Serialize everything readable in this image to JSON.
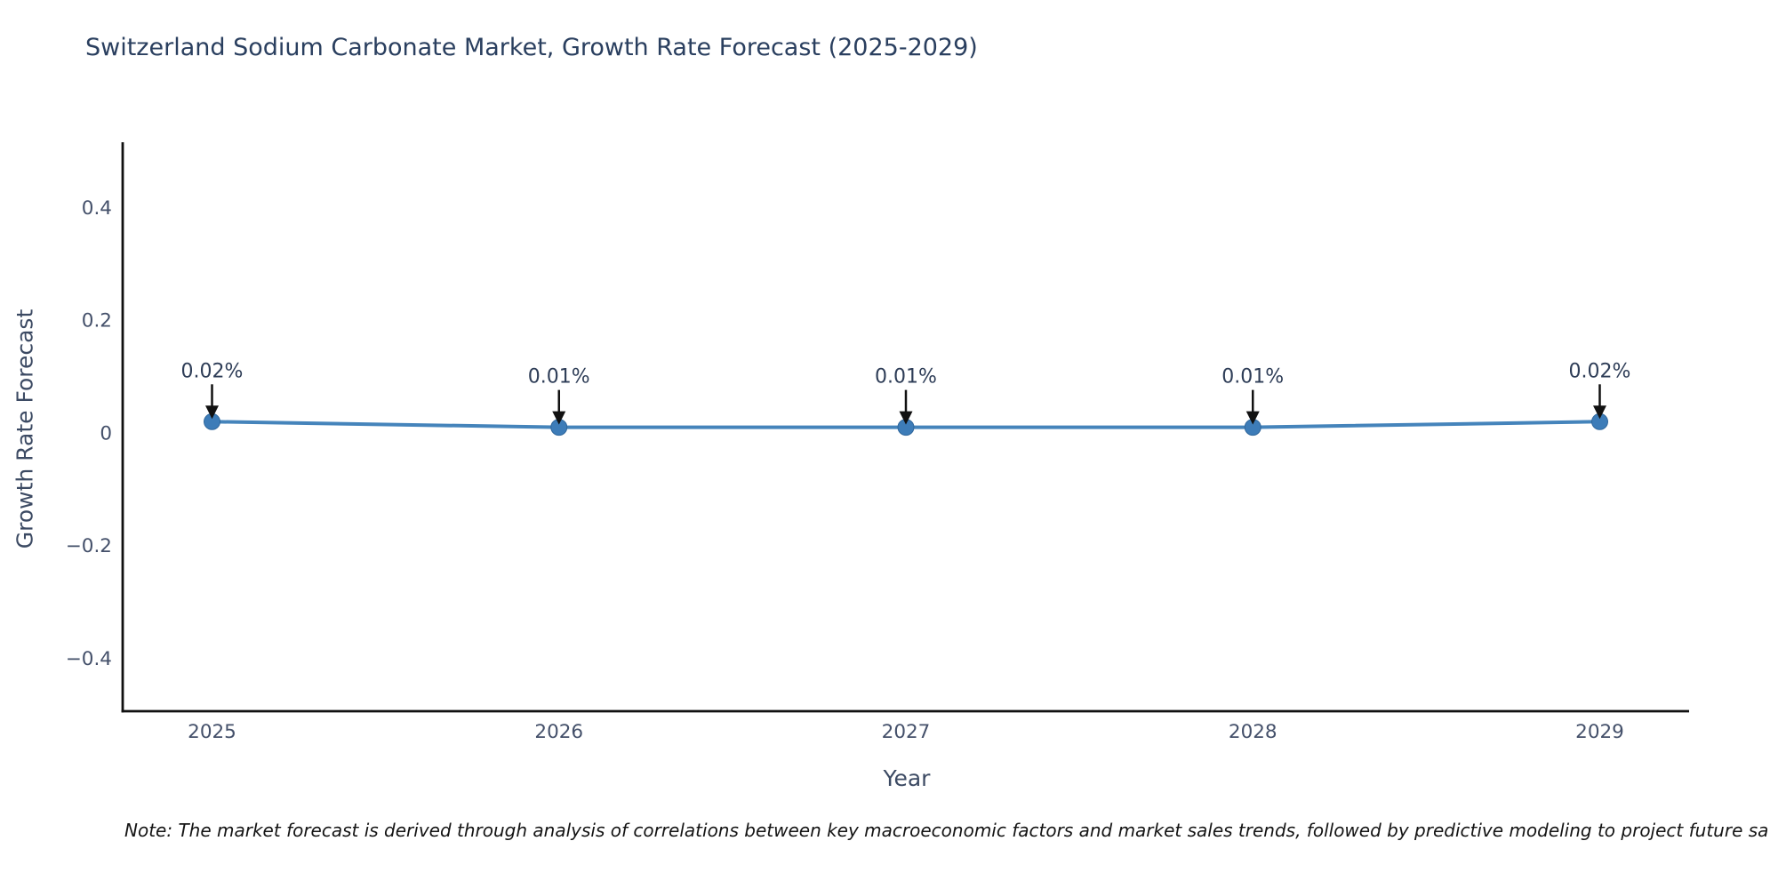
{
  "title": "Switzerland Sodium Carbonate Market, Growth Rate Forecast (2025-2029)",
  "footnote": "Note: The market forecast is derived through analysis of correlations between key macroeconomic factors and market sales trends, followed by predictive modeling to project future sa",
  "colors": {
    "title_text": "#2a3f5f",
    "axis_line": "#111111",
    "tick_text": "#44506a",
    "series_line": "#4584bb",
    "marker_fill": "#3d7cb8",
    "marker_edge": "#30679c",
    "annotation_text": "#2e3d57",
    "annotation_arrow": "#111111"
  },
  "chart_data": {
    "type": "line",
    "title": "Switzerland Sodium Carbonate Market, Growth Rate Forecast (2025-2029)",
    "xlabel": "Year",
    "ylabel": "Growth Rate Forecast",
    "categories": [
      "2025",
      "2026",
      "2027",
      "2028",
      "2029"
    ],
    "series": [
      {
        "name": "Growth Rate Forecast",
        "values": [
          0.02,
          0.01,
          0.01,
          0.01,
          0.02
        ],
        "point_labels": [
          "0.02%",
          "0.01%",
          "0.01%",
          "0.01%",
          "0.02%"
        ]
      }
    ],
    "yticks": [
      -0.4,
      -0.2,
      0,
      0.2,
      0.4
    ],
    "ytick_labels": [
      "−0.4",
      "−0.2",
      "0",
      "0.2",
      "0.4"
    ],
    "ylim": [
      -0.494,
      0.516
    ],
    "grid": false,
    "legend": false
  }
}
